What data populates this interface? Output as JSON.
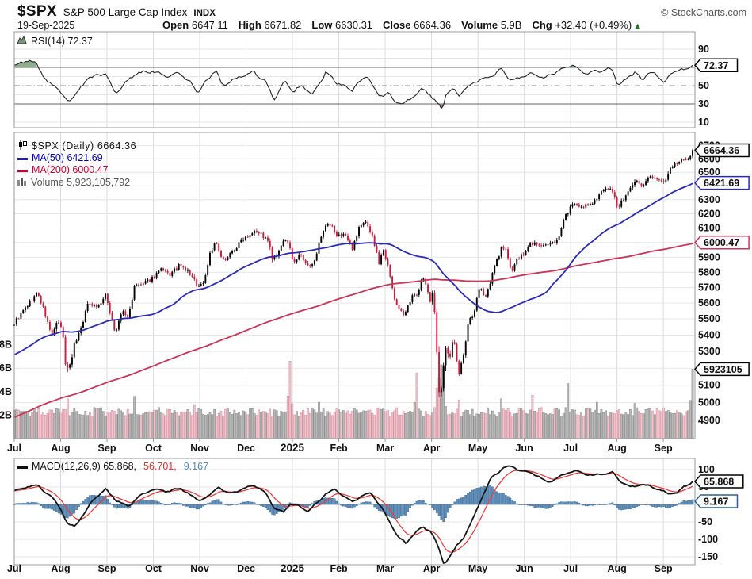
{
  "header": {
    "symbol": "$SPX",
    "name": "S&P 500 Large Cap Index",
    "exchange": "INDX",
    "date": "19-Sep-2025",
    "open_label": "Open",
    "open": "6647.11",
    "high_label": "High",
    "high": "6671.82",
    "low_label": "Low",
    "low": "6630.31",
    "close_label": "Close",
    "close": "6664.36",
    "volume_label": "Volume",
    "volume": "5.9B",
    "chg_label": "Chg",
    "chg": "+32.40 (+0.49%)",
    "chg_arrow": "▲",
    "copyright": "© StockCharts.com"
  },
  "legends": {
    "rsi": "RSI(14) 72.37",
    "price": "$SPX (Daily) 6664.36",
    "ma50": "MA(50) 6421.69",
    "ma200": "MA(200) 6000.47",
    "volume": "Volume 5,923,105,792",
    "macd": "MACD(12,26,9) 65.868,",
    "macd_signal": "56.701,",
    "macd_hist": "9.167"
  },
  "callouts": {
    "price": "6664.36",
    "ma50": "6421.69",
    "ma200": "6000.47",
    "volume": "5923105",
    "rsi": "72.37",
    "macd": "65.868",
    "macd_hist": "9.167"
  },
  "axis": {
    "months": [
      "Jul",
      "Aug",
      "Sep",
      "Oct",
      "Nov",
      "Dec",
      "2025",
      "Feb",
      "Mar",
      "Apr",
      "May",
      "Jun",
      "Jul",
      "Aug",
      "Sep"
    ],
    "bold_month": "2025",
    "price_ticks": [
      6700,
      6600,
      6500,
      6400,
      6300,
      6200,
      6100,
      6000,
      5900,
      5800,
      5700,
      5600,
      5500,
      5400,
      5300,
      5200,
      5100,
      5000,
      4900
    ],
    "volume_ticks": [
      {
        "label": "8B",
        "v": 8
      },
      {
        "label": "6B",
        "v": 6
      },
      {
        "label": "4B",
        "v": 4
      },
      {
        "label": "2B",
        "v": 2
      }
    ],
    "rsi_ticks": [
      90,
      70,
      50,
      30,
      10
    ],
    "macd_ticks": [
      100,
      50,
      0,
      -50,
      -100,
      -150
    ]
  },
  "colors": {
    "up": "#000000",
    "down": "#c41e3a",
    "ma50": "#2a2ab8",
    "ma200": "#cc3355",
    "vol_up": "#b9b9b9",
    "vol_up_stroke": "#858585",
    "vol_down": "#f2c3cd",
    "vol_down_stroke": "#cf8b99",
    "macd_line": "#151515",
    "macd_signal": "#f03b3b",
    "hist_fill": "#5f8fb8",
    "hist_stroke": "#2f5f8f",
    "rsi_line": "#222222",
    "rsi_fill_hi": "#8fae8f",
    "rsi_fill_lo": "#a97c7c",
    "grid": "#e6e6e6",
    "grid_month": "#dcdcdc",
    "band": "#666666",
    "border": "#9a9a9a",
    "text": "#111111",
    "chg_green": "#1e7a1e"
  },
  "chart_data": [
    {
      "id": "rsi",
      "type": "line",
      "title": "RSI(14)",
      "current": 72.37,
      "ylim": [
        0,
        100
      ],
      "yticks": [
        90,
        70,
        50,
        30,
        10
      ],
      "overbought": 70,
      "midline": 50,
      "oversold": 30,
      "x_unit": "months since 2024-07-01",
      "anchors": [
        [
          0,
          72
        ],
        [
          0.3,
          78
        ],
        [
          0.5,
          73
        ],
        [
          0.7,
          54
        ],
        [
          0.9,
          50
        ],
        [
          1.16,
          32
        ],
        [
          1.4,
          45
        ],
        [
          1.6,
          59
        ],
        [
          1.97,
          63
        ],
        [
          2.08,
          52
        ],
        [
          2.18,
          42
        ],
        [
          2.4,
          53
        ],
        [
          2.6,
          63
        ],
        [
          2.97,
          66
        ],
        [
          3.3,
          60
        ],
        [
          3.55,
          64
        ],
        [
          3.8,
          53
        ],
        [
          3.97,
          43
        ],
        [
          4.22,
          60
        ],
        [
          4.35,
          68
        ],
        [
          4.48,
          50
        ],
        [
          4.8,
          58
        ],
        [
          5.18,
          65
        ],
        [
          5.45,
          52
        ],
        [
          5.6,
          34
        ],
        [
          5.83,
          55
        ],
        [
          6.03,
          43
        ],
        [
          6.2,
          51
        ],
        [
          6.42,
          40
        ],
        [
          6.73,
          65
        ],
        [
          6.97,
          53
        ],
        [
          7.28,
          45
        ],
        [
          7.6,
          62
        ],
        [
          7.87,
          38
        ],
        [
          8.07,
          42
        ],
        [
          8.2,
          33
        ],
        [
          8.42,
          30
        ],
        [
          8.8,
          47
        ],
        [
          8.97,
          40
        ],
        [
          9.1,
          32
        ],
        [
          9.24,
          24
        ],
        [
          9.3,
          40
        ],
        [
          9.48,
          47
        ],
        [
          9.58,
          39
        ],
        [
          9.9,
          54
        ],
        [
          10.37,
          62
        ],
        [
          10.5,
          69
        ],
        [
          10.73,
          55
        ],
        [
          11.15,
          64
        ],
        [
          11.42,
          58
        ],
        [
          11.87,
          70
        ],
        [
          12.05,
          72
        ],
        [
          12.35,
          63
        ],
        [
          12.53,
          66
        ],
        [
          12.9,
          68
        ],
        [
          13.02,
          50
        ],
        [
          13.38,
          65
        ],
        [
          13.55,
          56
        ],
        [
          13.7,
          66
        ],
        [
          14.02,
          55
        ],
        [
          14.33,
          69
        ],
        [
          14.5,
          67
        ],
        [
          14.63,
          72.37
        ]
      ]
    },
    {
      "id": "price",
      "type": "candlestick",
      "title": "$SPX Daily",
      "scale": "log",
      "current_close": 6664.36,
      "ma50": 6421.69,
      "ma200": 6000.47,
      "volume_current": 5923105792,
      "ylim": [
        4800,
        6750
      ],
      "x_unit": "months since 2024-07-01",
      "close_anchors": [
        [
          0,
          5475
        ],
        [
          0.25,
          5572
        ],
        [
          0.5,
          5667
        ],
        [
          0.63,
          5560
        ],
        [
          0.8,
          5399
        ],
        [
          0.93,
          5475
        ],
        [
          1.03,
          5446
        ],
        [
          1.1,
          5240
        ],
        [
          1.16,
          5186
        ],
        [
          1.3,
          5344
        ],
        [
          1.45,
          5455
        ],
        [
          1.6,
          5608
        ],
        [
          1.8,
          5575
        ],
        [
          1.97,
          5648
        ],
        [
          2.08,
          5528
        ],
        [
          2.18,
          5408
        ],
        [
          2.33,
          5554
        ],
        [
          2.45,
          5503
        ],
        [
          2.6,
          5713
        ],
        [
          2.8,
          5722
        ],
        [
          2.97,
          5762
        ],
        [
          3.15,
          5815
        ],
        [
          3.35,
          5782
        ],
        [
          3.55,
          5841
        ],
        [
          3.75,
          5805
        ],
        [
          3.97,
          5705
        ],
        [
          4.1,
          5740
        ],
        [
          4.22,
          5930
        ],
        [
          4.35,
          6001
        ],
        [
          4.48,
          5871
        ],
        [
          4.63,
          5917
        ],
        [
          4.8,
          5969
        ],
        [
          4.93,
          6032
        ],
        [
          5.05,
          6050
        ],
        [
          5.18,
          6090
        ],
        [
          5.35,
          6051
        ],
        [
          5.48,
          6000
        ],
        [
          5.58,
          5872
        ],
        [
          5.72,
          5935
        ],
        [
          5.83,
          6037
        ],
        [
          5.92,
          5975
        ],
        [
          6.03,
          5868
        ],
        [
          6.18,
          5920
        ],
        [
          6.3,
          5842
        ],
        [
          6.42,
          5836
        ],
        [
          6.58,
          5996
        ],
        [
          6.73,
          6118
        ],
        [
          6.87,
          6101
        ],
        [
          6.97,
          6040
        ],
        [
          7.12,
          6066
        ],
        [
          7.28,
          5955
        ],
        [
          7.45,
          6115
        ],
        [
          7.6,
          6144
        ],
        [
          7.73,
          6035
        ],
        [
          7.87,
          5861
        ],
        [
          7.95,
          5954
        ],
        [
          8.07,
          5849
        ],
        [
          8.2,
          5614
        ],
        [
          8.42,
          5521
        ],
        [
          8.58,
          5638
        ],
        [
          8.7,
          5667
        ],
        [
          8.8,
          5776
        ],
        [
          8.9,
          5693
        ],
        [
          8.97,
          5612
        ],
        [
          9.03,
          5671
        ],
        [
          9.1,
          5396
        ],
        [
          9.16,
          5074
        ],
        [
          9.2,
          5062
        ],
        [
          9.24,
          4983
        ],
        [
          9.28,
          5457
        ],
        [
          9.32,
          5268
        ],
        [
          9.4,
          5283
        ],
        [
          9.48,
          5397
        ],
        [
          9.58,
          5158
        ],
        [
          9.7,
          5288
        ],
        [
          9.8,
          5485
        ],
        [
          9.9,
          5525
        ],
        [
          10.03,
          5687
        ],
        [
          10.18,
          5650
        ],
        [
          10.37,
          5844
        ],
        [
          10.5,
          5958
        ],
        [
          10.62,
          5940
        ],
        [
          10.73,
          5803
        ],
        [
          10.85,
          5889
        ],
        [
          10.97,
          5912
        ],
        [
          11.15,
          6000
        ],
        [
          11.3,
          5983
        ],
        [
          11.42,
          5977
        ],
        [
          11.55,
          5982
        ],
        [
          11.72,
          6025
        ],
        [
          11.87,
          6173
        ],
        [
          12.05,
          6279
        ],
        [
          12.2,
          6230
        ],
        [
          12.35,
          6264
        ],
        [
          12.53,
          6297
        ],
        [
          12.7,
          6363
        ],
        [
          12.88,
          6390
        ],
        [
          13.02,
          6238
        ],
        [
          13.2,
          6340
        ],
        [
          13.38,
          6446
        ],
        [
          13.55,
          6395
        ],
        [
          13.7,
          6467
        ],
        [
          13.85,
          6460
        ],
        [
          14.02,
          6415
        ],
        [
          14.17,
          6532
        ],
        [
          14.33,
          6587
        ],
        [
          14.45,
          6584
        ],
        [
          14.55,
          6615
        ],
        [
          14.63,
          6664.36
        ]
      ],
      "volume_base_billions": 1.9,
      "volume_spikes": [
        [
          1.13,
          3.4
        ],
        [
          1.16,
          3.2
        ],
        [
          2.6,
          3.6
        ],
        [
          3.9,
          2.9
        ],
        [
          5.95,
          6.6
        ],
        [
          6.55,
          3.1
        ],
        [
          8.7,
          5.6
        ],
        [
          9.1,
          4.3
        ],
        [
          9.16,
          5.2
        ],
        [
          9.2,
          6.3
        ],
        [
          9.24,
          6.1
        ],
        [
          9.28,
          5.7
        ],
        [
          9.6,
          3.3
        ],
        [
          10.5,
          3.4
        ],
        [
          11.2,
          3.7
        ],
        [
          11.93,
          4.7
        ],
        [
          12.55,
          3.1
        ],
        [
          13.38,
          3.0
        ],
        [
          14.63,
          5.92
        ]
      ]
    },
    {
      "id": "macd",
      "type": "line+histogram",
      "title": "MACD(12,26,9)",
      "macd": 65.868,
      "signal": 56.701,
      "hist": 9.167,
      "signal_ema_days": 9,
      "yticks": [
        100,
        50,
        0,
        -50,
        -100,
        -150
      ],
      "x_unit": "months since 2024-07-01",
      "anchors": [
        [
          0,
          38
        ],
        [
          0.3,
          52
        ],
        [
          0.5,
          55
        ],
        [
          0.8,
          22
        ],
        [
          1,
          -12
        ],
        [
          1.16,
          -58
        ],
        [
          1.3,
          -62
        ],
        [
          1.5,
          -28
        ],
        [
          1.7,
          14
        ],
        [
          1.97,
          43
        ],
        [
          2.2,
          12
        ],
        [
          2.45,
          -6
        ],
        [
          2.7,
          24
        ],
        [
          2.97,
          43
        ],
        [
          3.3,
          38
        ],
        [
          3.6,
          46
        ],
        [
          3.97,
          12
        ],
        [
          4.22,
          26
        ],
        [
          4.4,
          52
        ],
        [
          4.6,
          30
        ],
        [
          4.93,
          44
        ],
        [
          5.18,
          56
        ],
        [
          5.45,
          28
        ],
        [
          5.62,
          -12
        ],
        [
          5.8,
          -22
        ],
        [
          5.95,
          2
        ],
        [
          6.1,
          -4
        ],
        [
          6.35,
          -18
        ],
        [
          6.55,
          6
        ],
        [
          6.73,
          33
        ],
        [
          6.9,
          43
        ],
        [
          7.1,
          26
        ],
        [
          7.3,
          6
        ],
        [
          7.5,
          27
        ],
        [
          7.7,
          31
        ],
        [
          7.9,
          -4
        ],
        [
          8.1,
          -52
        ],
        [
          8.3,
          -95
        ],
        [
          8.45,
          -112
        ],
        [
          8.6,
          -85
        ],
        [
          8.8,
          -66
        ],
        [
          8.97,
          -74
        ],
        [
          9.1,
          -108
        ],
        [
          9.27,
          -172
        ],
        [
          9.4,
          -148
        ],
        [
          9.55,
          -118
        ],
        [
          9.7,
          -92
        ],
        [
          9.9,
          -40
        ],
        [
          10.1,
          25
        ],
        [
          10.3,
          78
        ],
        [
          10.55,
          106
        ],
        [
          10.75,
          108
        ],
        [
          10.95,
          96
        ],
        [
          11.15,
          92
        ],
        [
          11.3,
          80
        ],
        [
          11.5,
          63
        ],
        [
          11.7,
          74
        ],
        [
          11.9,
          90
        ],
        [
          12.1,
          96
        ],
        [
          12.3,
          88
        ],
        [
          12.5,
          83
        ],
        [
          12.7,
          89
        ],
        [
          12.9,
          91
        ],
        [
          13.1,
          64
        ],
        [
          13.3,
          50
        ],
        [
          13.5,
          57
        ],
        [
          13.7,
          53
        ],
        [
          13.9,
          44
        ],
        [
          14.1,
          30
        ],
        [
          14.3,
          35
        ],
        [
          14.45,
          50
        ],
        [
          14.63,
          65.868
        ]
      ]
    }
  ]
}
